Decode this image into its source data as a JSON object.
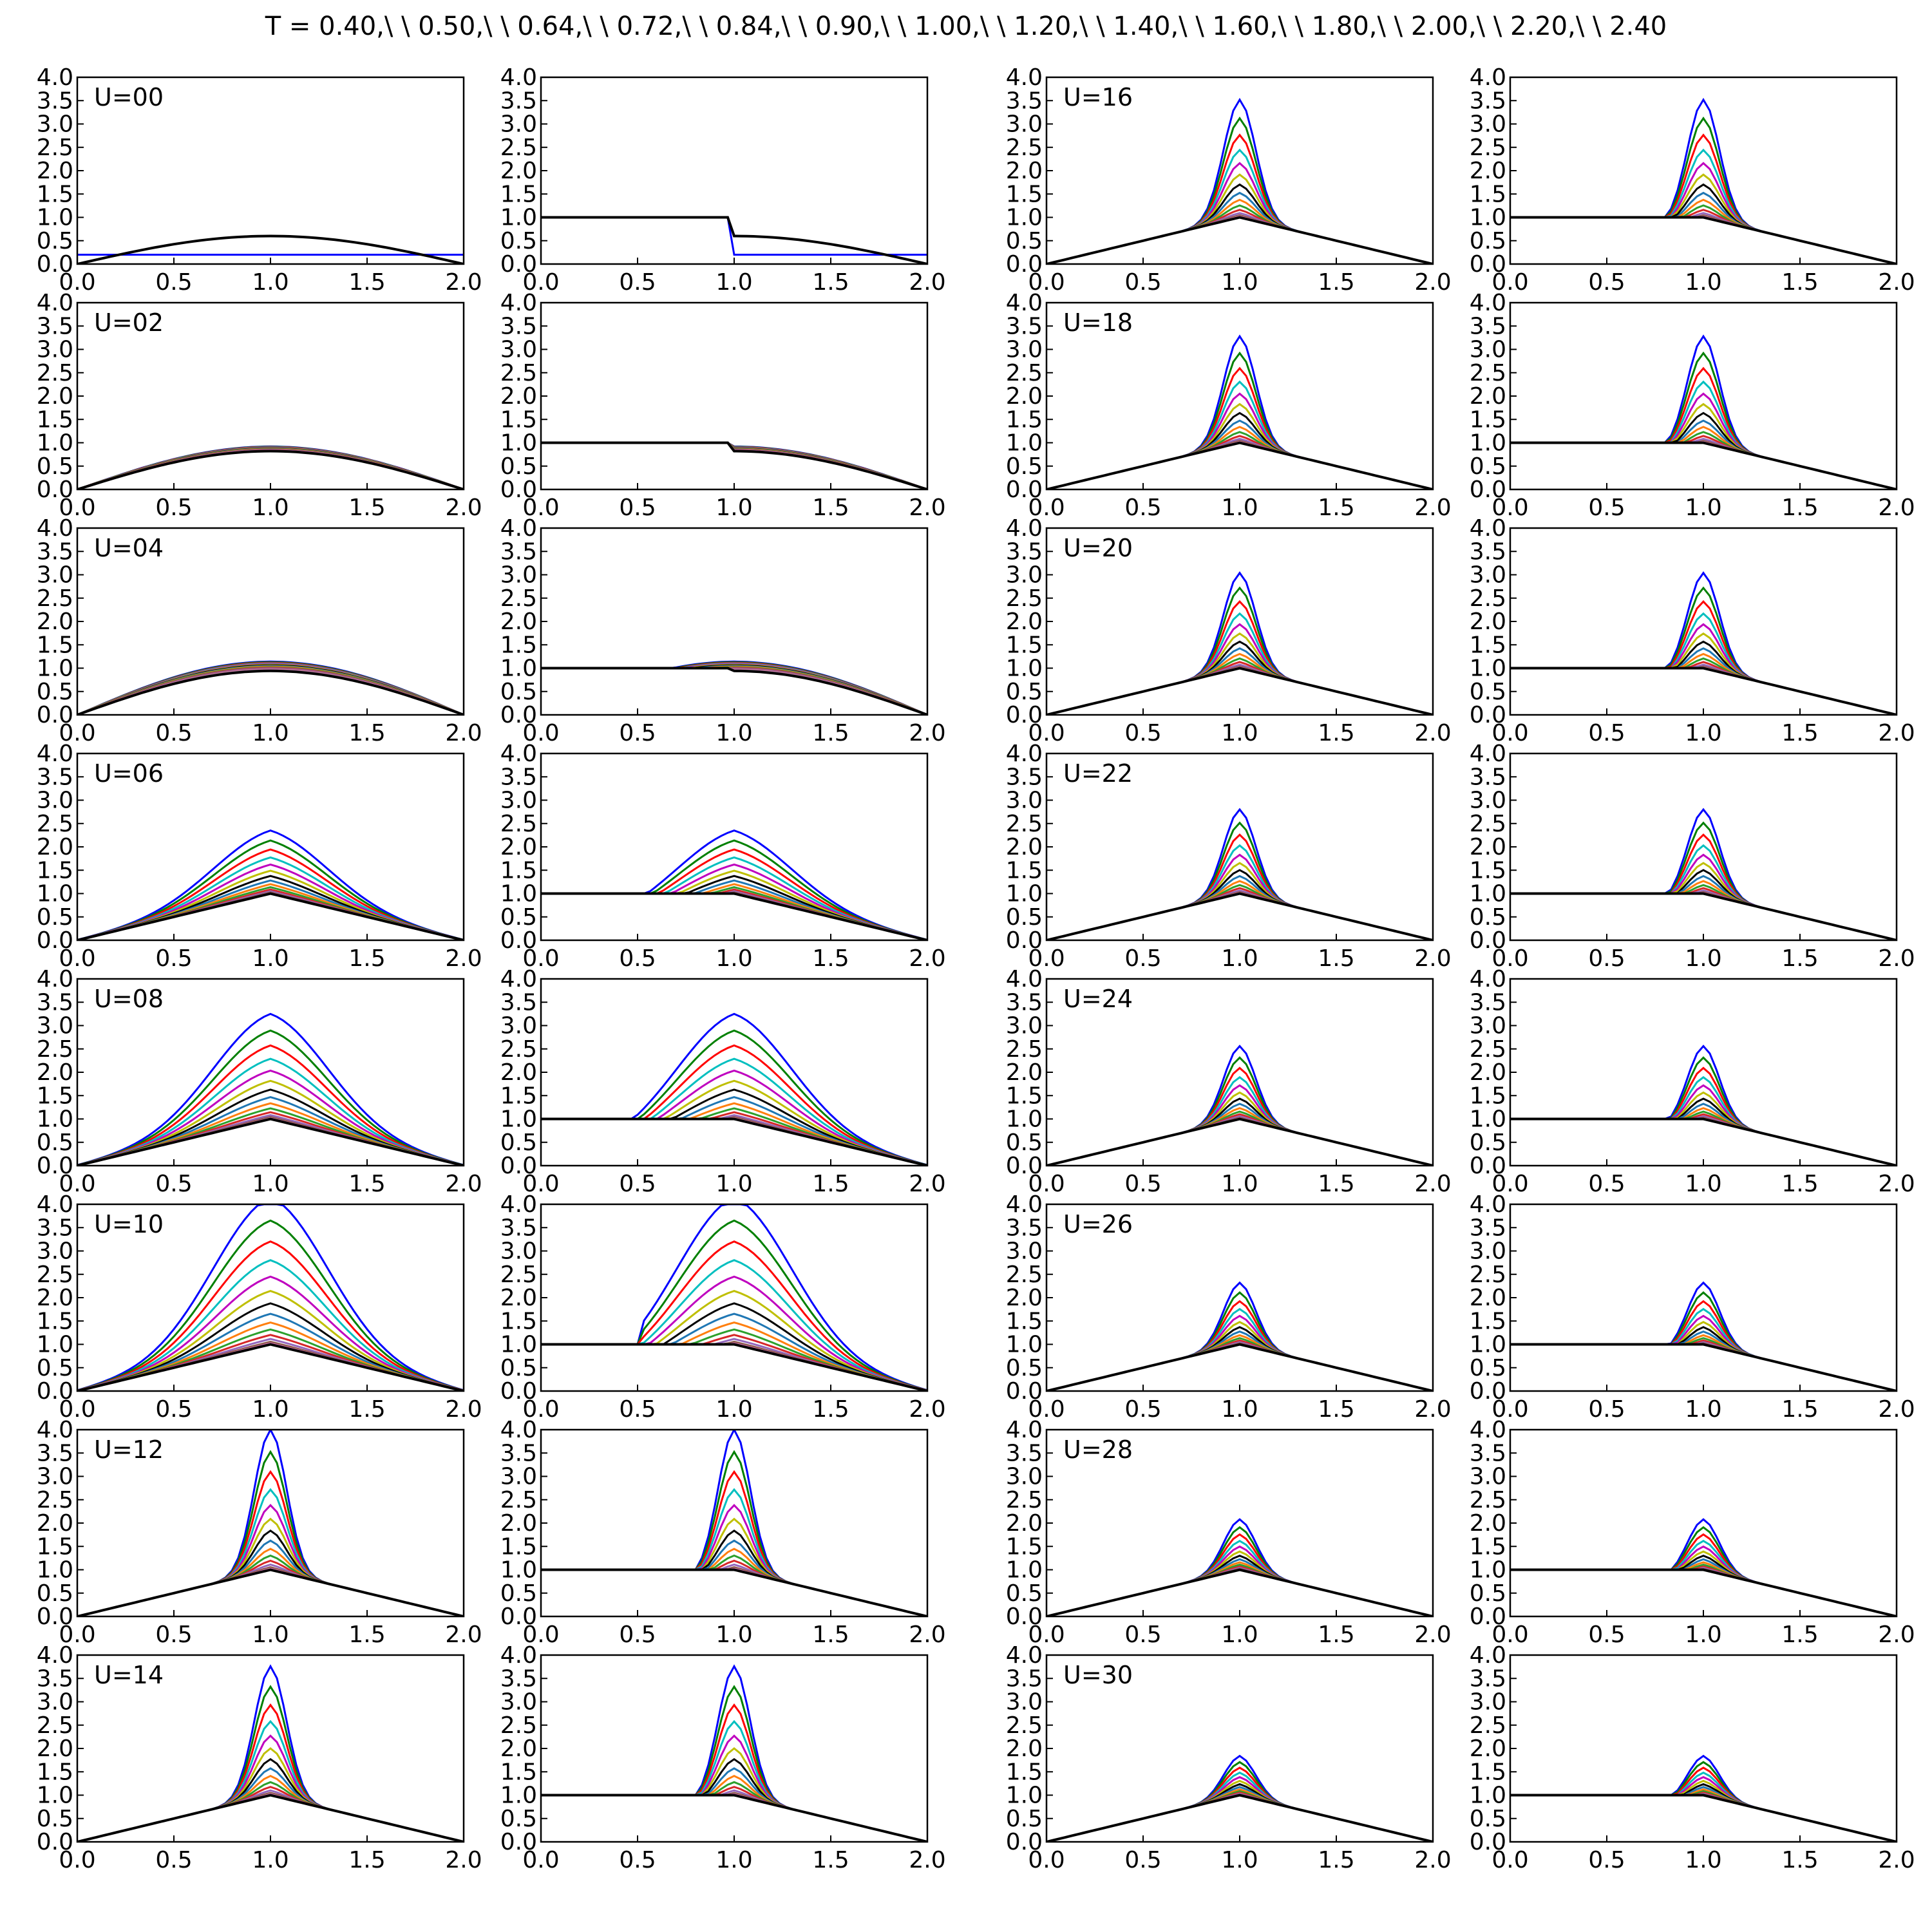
{
  "figure": {
    "title": "T = 0.40,\\ \\ 0.50,\\ \\ 0.64,\\ \\ 0.72,\\ \\ 0.84,\\ \\ 0.90,\\ \\ 1.00,\\ \\ 1.20,\\ \\ 1.40,\\ \\ 1.60,\\ \\ 1.80,\\ \\ 2.00,\\ \\ 2.20,\\ \\ 2.40"
  },
  "chart_data": {
    "type": "line",
    "layout": "8 rows x 4 columns of small-multiple line panels",
    "x_ticks": [
      "0.0",
      "0.5",
      "1.0",
      "1.5",
      "2.0"
    ],
    "y_ticks": [
      "0.0",
      "0.5",
      "1.0",
      "1.5",
      "2.0",
      "2.5",
      "3.0",
      "3.5",
      "4.0"
    ],
    "xlim": [
      0,
      2
    ],
    "ylim": [
      0,
      4
    ],
    "grid": false,
    "series_colors": [
      "#0000ff",
      "#008000",
      "#ff0000",
      "#00bfbf",
      "#bf00bf",
      "#bfbf00",
      "#000000",
      "#1f77b4",
      "#ff7f0e",
      "#2ca02c",
      "#d62728",
      "#9467bd",
      "#8c564b",
      "#e377c2",
      "#7f7f7f",
      "#000000"
    ],
    "panels": [
      {
        "row": 0,
        "col": 0,
        "label": "U=00",
        "kind": "dome",
        "U": 0
      },
      {
        "row": 0,
        "col": 1,
        "label": "",
        "kind": "shifted",
        "U": 0
      },
      {
        "row": 0,
        "col": 2,
        "label": "U=16",
        "kind": "dome",
        "U": 16
      },
      {
        "row": 0,
        "col": 3,
        "label": "",
        "kind": "shifted",
        "U": 16
      },
      {
        "row": 1,
        "col": 0,
        "label": "U=02",
        "kind": "dome",
        "U": 2
      },
      {
        "row": 1,
        "col": 1,
        "label": "",
        "kind": "shifted",
        "U": 2
      },
      {
        "row": 1,
        "col": 2,
        "label": "U=18",
        "kind": "dome",
        "U": 18
      },
      {
        "row": 1,
        "col": 3,
        "label": "",
        "kind": "shifted",
        "U": 18
      },
      {
        "row": 2,
        "col": 0,
        "label": "U=04",
        "kind": "dome",
        "U": 4
      },
      {
        "row": 2,
        "col": 1,
        "label": "",
        "kind": "shifted",
        "U": 4
      },
      {
        "row": 2,
        "col": 2,
        "label": "U=20",
        "kind": "dome",
        "U": 20
      },
      {
        "row": 2,
        "col": 3,
        "label": "",
        "kind": "shifted",
        "U": 20
      },
      {
        "row": 3,
        "col": 0,
        "label": "U=06",
        "kind": "dome",
        "U": 6
      },
      {
        "row": 3,
        "col": 1,
        "label": "",
        "kind": "shifted",
        "U": 6
      },
      {
        "row": 3,
        "col": 2,
        "label": "U=22",
        "kind": "dome",
        "U": 22
      },
      {
        "row": 3,
        "col": 3,
        "label": "",
        "kind": "shifted",
        "U": 22
      },
      {
        "row": 4,
        "col": 0,
        "label": "U=08",
        "kind": "dome",
        "U": 8
      },
      {
        "row": 4,
        "col": 1,
        "label": "",
        "kind": "shifted",
        "U": 8
      },
      {
        "row": 4,
        "col": 2,
        "label": "U=24",
        "kind": "dome",
        "U": 24
      },
      {
        "row": 4,
        "col": 3,
        "label": "",
        "kind": "shifted",
        "U": 24
      },
      {
        "row": 5,
        "col": 0,
        "label": "U=10",
        "kind": "dome",
        "U": 10
      },
      {
        "row": 5,
        "col": 1,
        "label": "",
        "kind": "shifted",
        "U": 10
      },
      {
        "row": 5,
        "col": 2,
        "label": "U=26",
        "kind": "dome",
        "U": 26
      },
      {
        "row": 5,
        "col": 3,
        "label": "",
        "kind": "shifted",
        "U": 26
      },
      {
        "row": 6,
        "col": 0,
        "label": "U=12",
        "kind": "dome",
        "U": 12
      },
      {
        "row": 6,
        "col": 1,
        "label": "",
        "kind": "shifted",
        "U": 12
      },
      {
        "row": 6,
        "col": 2,
        "label": "U=28",
        "kind": "dome",
        "U": 28
      },
      {
        "row": 6,
        "col": 3,
        "label": "",
        "kind": "shifted",
        "U": 28
      },
      {
        "row": 7,
        "col": 0,
        "label": "U=14",
        "kind": "dome",
        "U": 14
      },
      {
        "row": 7,
        "col": 1,
        "label": "",
        "kind": "shifted",
        "U": 14
      },
      {
        "row": 7,
        "col": 2,
        "label": "U=30",
        "kind": "dome",
        "U": 30
      },
      {
        "row": 7,
        "col": 3,
        "label": "",
        "kind": "shifted",
        "U": 30
      }
    ]
  }
}
